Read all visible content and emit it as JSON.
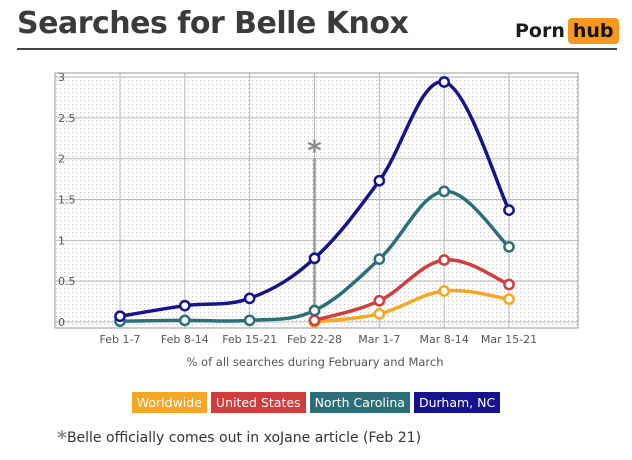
{
  "header": {
    "title": "Searches for Belle Knox",
    "logo_part1": "Porn",
    "logo_part2": "hub"
  },
  "chart_data": {
    "type": "line",
    "title": "Searches for Belle Knox",
    "xlabel": "% of all searches during February and March",
    "ylabel": "",
    "categories": [
      "Feb 1-7",
      "Feb 8-14",
      "Feb 15-21",
      "Feb 22-28",
      "Mar 1-7",
      "Mar 8-14",
      "Mar 15-21"
    ],
    "y_ticks": [
      "0",
      "0.5",
      "1",
      "1.5",
      "2",
      "2.5",
      "3"
    ],
    "ylim": [
      0,
      3.05
    ],
    "grid": true,
    "legend_position": "bottom",
    "series": [
      {
        "name": "Worldwide",
        "color": "#f5a623",
        "values": [
          null,
          null,
          null,
          0.0,
          0.1,
          0.38,
          0.28
        ]
      },
      {
        "name": "United States",
        "color": "#d13c3c",
        "values": [
          null,
          null,
          null,
          0.02,
          0.26,
          0.76,
          0.46
        ]
      },
      {
        "name": "North Carolina",
        "color": "#2c6f78",
        "values": [
          0.01,
          0.02,
          0.02,
          0.14,
          0.77,
          1.6,
          0.92
        ]
      },
      {
        "name": "Durham, NC",
        "color": "#17138f",
        "values": [
          0.07,
          0.2,
          0.29,
          0.78,
          1.73,
          2.94,
          1.37
        ]
      }
    ],
    "annotation": {
      "category": "Feb 22-28",
      "marker": "*"
    }
  },
  "footnote": {
    "marker": "*",
    "text": "Belle officially comes out in xoJane article (Feb 21)"
  }
}
